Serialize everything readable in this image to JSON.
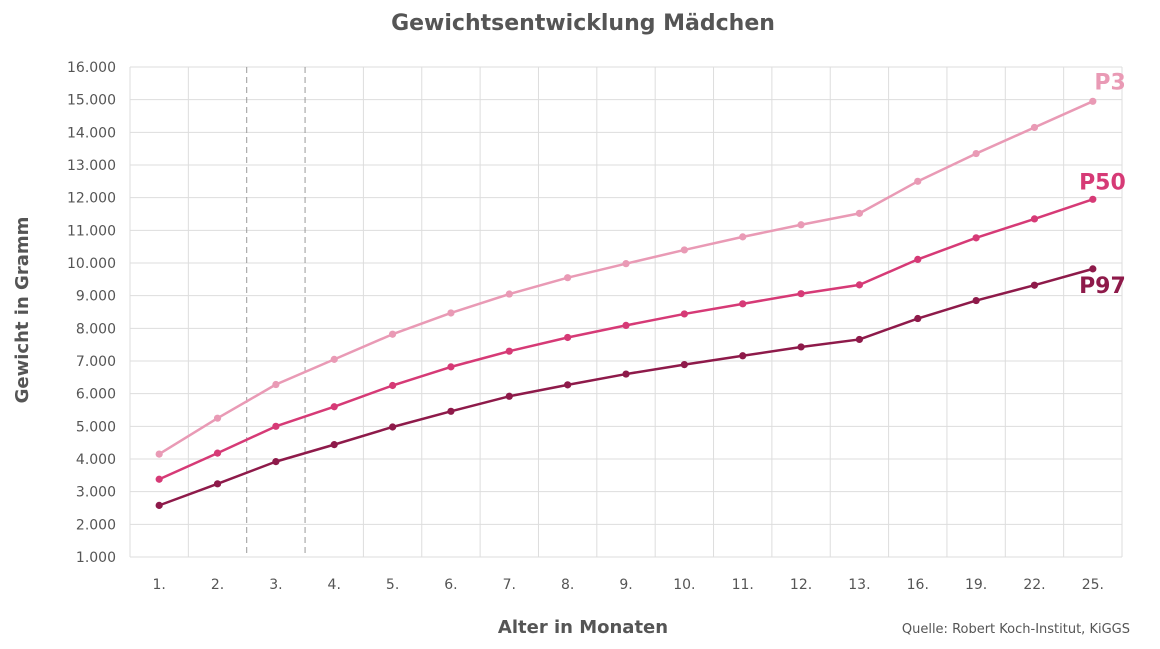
{
  "chart_data": {
    "type": "line",
    "title": "Gewichtsentwicklung Mädchen",
    "xlabel": "Alter in Monaten",
    "ylabel": "Gewicht in Gramm",
    "source": "Quelle: Robert Koch-Institut, KiGGS",
    "categories": [
      "1.",
      "2.",
      "3.",
      "4.",
      "5.",
      "6.",
      "7.",
      "8.",
      "9.",
      "10.",
      "11.",
      "12.",
      "13.",
      "16.",
      "19.",
      "22.",
      "25."
    ],
    "ylim": [
      1000,
      16000
    ],
    "yticks": [
      1000,
      2000,
      3000,
      4000,
      5000,
      6000,
      7000,
      8000,
      9000,
      10000,
      11000,
      12000,
      13000,
      14000,
      15000,
      16000
    ],
    "ytick_labels": [
      "1.000",
      "2.000",
      "3.000",
      "4.000",
      "5.000",
      "6.000",
      "7.000",
      "8.000",
      "9.000",
      "10.000",
      "11.000",
      "12.000",
      "13.000",
      "14.000",
      "15.000",
      "16.000"
    ],
    "grid": true,
    "series": [
      {
        "name": "P3",
        "color": "#e99ab5",
        "values": [
          4150,
          5250,
          6280,
          7050,
          7820,
          8470,
          9050,
          9550,
          9980,
          10400,
          10800,
          11170,
          11520,
          12500,
          13350,
          14150,
          14950
        ]
      },
      {
        "name": "P50",
        "color": "#d63a76",
        "values": [
          3380,
          4180,
          5000,
          5600,
          6250,
          6820,
          7300,
          7720,
          8090,
          8440,
          8750,
          9060,
          9330,
          10110,
          10770,
          11350,
          11950
        ]
      },
      {
        "name": "P97",
        "color": "#8e1a4a",
        "values": [
          2580,
          3240,
          3920,
          4440,
          4980,
          5460,
          5920,
          6270,
          6600,
          6890,
          7160,
          7430,
          7660,
          8300,
          8850,
          9320,
          9820
        ]
      }
    ]
  }
}
